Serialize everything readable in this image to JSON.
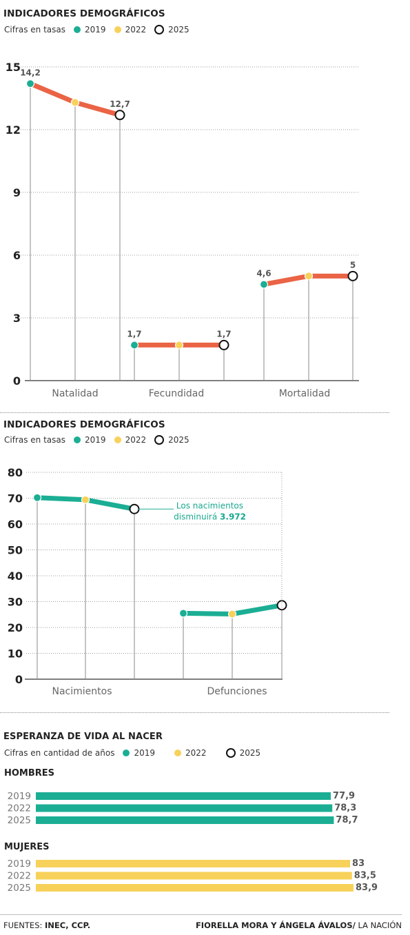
{
  "colors": {
    "c2019": "#1bae94",
    "c2022": "#f7d15a",
    "c2025": "#ffffff",
    "line1": "#ea6445",
    "line2": "#1bae94",
    "men": "#1bae94",
    "women": "#f7d15a"
  },
  "section1": {
    "title": "INDICADORES DEMOGRÁFICOS",
    "legend_label": "Cifras en tasas",
    "legend": [
      "2019",
      "2022",
      "2025"
    ]
  },
  "section2": {
    "title": "INDICADORES DEMOGRÁFICOS",
    "legend_label": "Cifras en tasas",
    "legend": [
      "2019",
      "2022",
      "2025"
    ],
    "annotation_line1": "Los nacimientos",
    "annotation_line2": "disminuirá",
    "annotation_value": "3.972"
  },
  "section3": {
    "title": "ESPERANZA DE VIDA AL NACER",
    "legend_label": "Cifras en cantidad de años",
    "legend": [
      "2019",
      "2022",
      "2025"
    ],
    "men_label": "HOMBRES",
    "women_label": "MUJERES"
  },
  "footer": {
    "sources_label": "FUENTES:",
    "sources": "INEC, CCP.",
    "authors": "FIORELLA MORA Y ÁNGELA ÁVALOS/",
    "outlet": "LA NACIÓN"
  },
  "chart_data": [
    {
      "type": "line",
      "ylim": [
        0,
        15
      ],
      "yticks": [
        0,
        3,
        6,
        9,
        12,
        15
      ],
      "grid": true,
      "x": [
        "2019",
        "2022",
        "2025"
      ],
      "groups": [
        {
          "name": "Natalidad",
          "values": [
            14.2,
            13.3,
            12.7
          ],
          "labels": [
            "14,2",
            "",
            "12,7"
          ]
        },
        {
          "name": "Fecundidad",
          "values": [
            1.7,
            1.7,
            1.7
          ],
          "labels": [
            "1,7",
            "",
            "1,7"
          ]
        },
        {
          "name": "Mortalidad",
          "values": [
            4.6,
            5.0,
            5.0
          ],
          "labels": [
            "4,6",
            "",
            "5"
          ]
        }
      ]
    },
    {
      "type": "line",
      "ylim": [
        0,
        80
      ],
      "yticks": [
        0,
        10,
        20,
        30,
        40,
        50,
        60,
        70,
        80
      ],
      "grid": true,
      "x": [
        "2019",
        "2022",
        "2025"
      ],
      "groups": [
        {
          "name": "Nacimientos",
          "values": [
            70.2,
            69.4,
            65.8
          ]
        },
        {
          "name": "Defunciones",
          "values": [
            25.5,
            25.2,
            28.6
          ]
        }
      ]
    },
    {
      "type": "bar",
      "orientation": "horizontal",
      "xlim": [
        0,
        84
      ],
      "groups": [
        {
          "name": "HOMBRES",
          "categories": [
            "2019",
            "2022",
            "2025"
          ],
          "values": [
            77.9,
            78.3,
            78.7
          ],
          "labels": [
            "77,9",
            "78,3",
            "78,7"
          ]
        },
        {
          "name": "MUJERES",
          "categories": [
            "2019",
            "2022",
            "2025"
          ],
          "values": [
            83,
            83.5,
            83.9
          ],
          "labels": [
            "83",
            "83,5",
            "83,9"
          ]
        }
      ]
    }
  ]
}
